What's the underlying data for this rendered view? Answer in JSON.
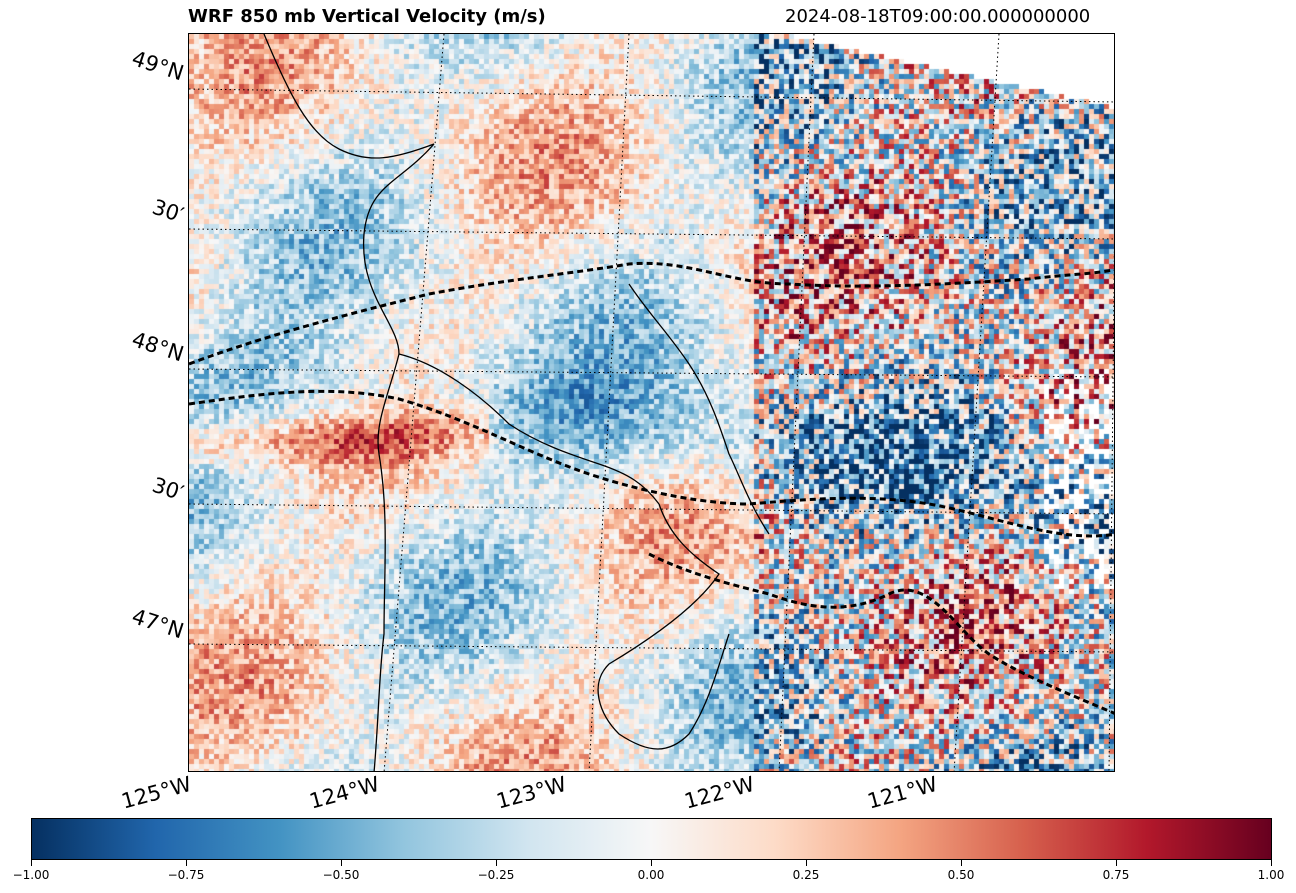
{
  "title": "WRF 850 mb Vertical Velocity (m/s)",
  "valid_time": "2024-08-18T09:00:00.000000000",
  "latitude_labels": [
    "49°N",
    "30′",
    "48°N",
    "30′",
    "47°N"
  ],
  "longitude_labels": [
    "125°W",
    "124°W",
    "123°W",
    "122°W",
    "121°W"
  ],
  "colorbar": {
    "colormap": "RdBu_r",
    "min": -1.0,
    "max": 1.0,
    "ticks": [
      "−1.00",
      "−0.75",
      "−0.50",
      "−0.25",
      "0.00",
      "0.25",
      "0.50",
      "0.75",
      "1.00"
    ]
  },
  "colors": {
    "negative": "#053061",
    "neutral": "#f7f7f7",
    "positive": "#67001f"
  }
}
